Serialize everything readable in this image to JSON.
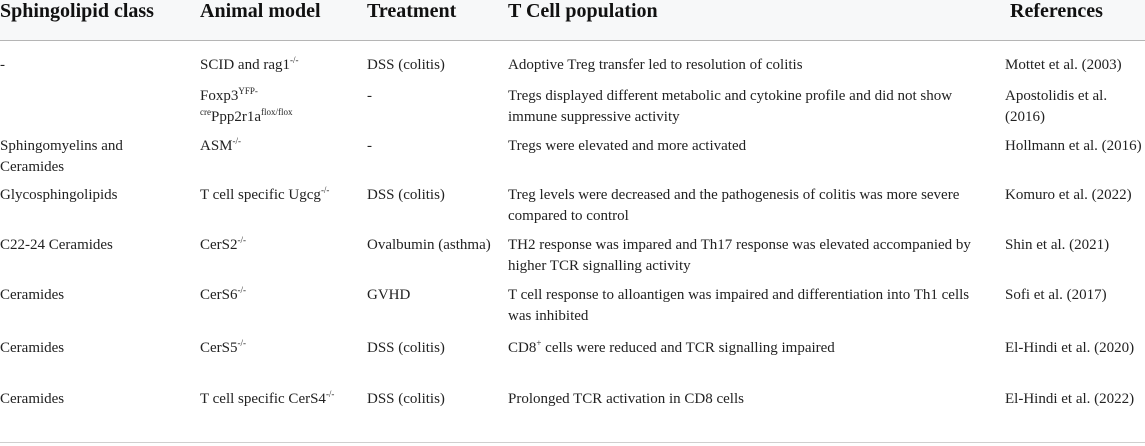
{
  "headers": [
    "Sphingolipid class",
    "Animal model",
    "Treatment",
    "T Cell population",
    "References"
  ],
  "rows": [
    {
      "class": "-",
      "model_main": "SCID and rag1",
      "model_sup": "-/-",
      "treatment": "DSS (colitis)",
      "population": "Adoptive Treg transfer led to resolution of colitis",
      "reference": "Mottet et al. (2003)"
    },
    {
      "class": "",
      "model_line1_main": "Foxp3",
      "model_line1_sup": "YFP-",
      "model_line2_pre": "cre",
      "model_line2_main": "Ppp2r1a",
      "model_line2_sup": "flox/flox",
      "treatment": "-",
      "population": "Tregs displayed different metabolic and cytokine profile and did not show immune suppressive activity",
      "reference": "Apostolidis et al. (2016)"
    },
    {
      "class": "Sphingomyelins and Ceramides",
      "model_main": "ASM",
      "model_sup": "-/-",
      "treatment": "-",
      "population": "Tregs were elevated and more activated",
      "reference": "Hollmann et al. (2016)"
    },
    {
      "class": "Glycosphingolipids",
      "model_main": "T cell specific Ugcg",
      "model_sup": "-/-",
      "treatment": "DSS (colitis)",
      "population": "Treg levels were decreased and the pathogenesis of colitis was more severe compared to control",
      "reference": "Komuro et al. (2022)"
    },
    {
      "class": "C22-24 Ceramides",
      "model_main": "CerS2",
      "model_sup": "-/-",
      "treatment": "Ovalbumin (asthma)",
      "population": "TH2 response was impared and Th17 response was elevated accompanied by higher TCR signalling activity",
      "reference": "Shin et al. (2021)"
    },
    {
      "class": "Ceramides",
      "model_main": "CerS6",
      "model_sup": "-/-",
      "treatment": "GVHD",
      "population": "T cell response to alloantigen was impaired and differentiation into Th1 cells was inhibited",
      "reference": "Sofi et al. (2017)"
    },
    {
      "class": "Ceramides",
      "model_main": "CerS5",
      "model_sup": "-/-",
      "treatment": "DSS (colitis)",
      "population_main": "CD8",
      "population_sup": "+",
      "population_rest": " cells were reduced and TCR signalling impaired",
      "reference": "El-Hindi et al. (2020)"
    },
    {
      "class": "Ceramides",
      "model_main": "T cell specific CerS4",
      "model_sup": "-/-",
      "treatment": "DSS (colitis)",
      "population": "Prolonged TCR activation in CD8 cells",
      "reference": "El-Hindi et al. (2022)"
    }
  ]
}
